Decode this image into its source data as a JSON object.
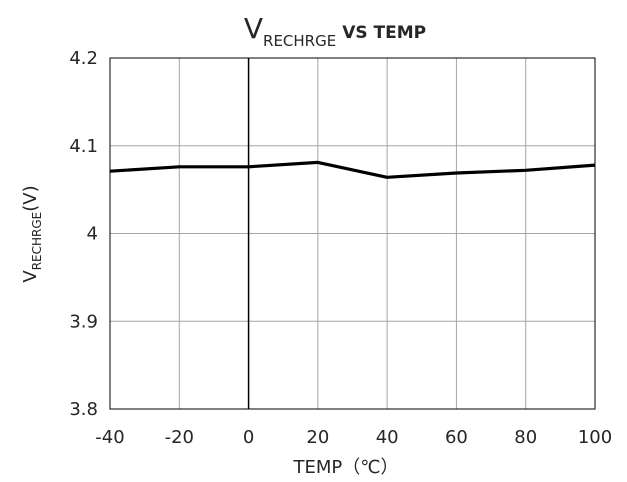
{
  "chart_data": {
    "type": "line",
    "title": {
      "main": "V",
      "subscript": "RECHRGE",
      "suffix": "VS TEMP"
    },
    "xlabel": "TEMP（℃）",
    "ylabel": {
      "main": "V",
      "subscript": "RECHRGE",
      "suffix": "(V)"
    },
    "xlim": [
      -40,
      100
    ],
    "ylim": [
      3.8,
      4.2
    ],
    "xticks": [
      "-40",
      "-20",
      "0",
      "20",
      "40",
      "60",
      "80",
      "100"
    ],
    "yticks": [
      "3.8",
      "3.9",
      "4",
      "4.1",
      "4.2"
    ],
    "grid": true,
    "series": [
      {
        "color": "#000000",
        "x": [
          -40,
          -20,
          0,
          20,
          40,
          60,
          80,
          100
        ],
        "y": [
          4.071,
          4.076,
          4.076,
          4.081,
          4.064,
          4.069,
          4.072,
          4.078
        ]
      }
    ]
  }
}
